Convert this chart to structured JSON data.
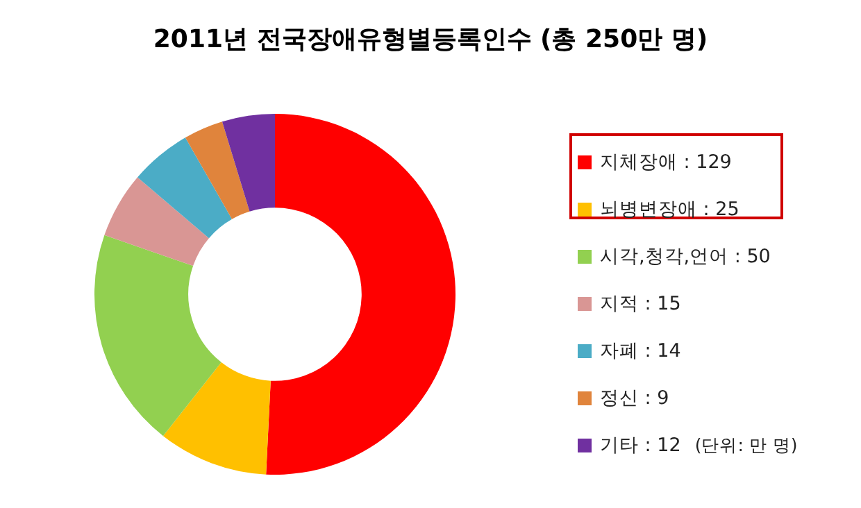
{
  "chart_data": {
    "type": "donut",
    "title": "2011년 전국장애유형별등록인수 (총 250만 명)",
    "categories": [
      "지체장애 : 129",
      "뇌병변장애 : 25",
      "시각,청각,언어 : 50",
      "지적 : 15",
      "자폐 : 14",
      "정신 : 9",
      "기타 : 12"
    ],
    "values": [
      129,
      25,
      50,
      15,
      14,
      9,
      12
    ],
    "colors": [
      "#ff0000",
      "#ffc000",
      "#92d050",
      "#d99694",
      "#4bacc6",
      "#e0843c",
      "#7030a0"
    ],
    "legend": "right",
    "annotations": [
      "(단위:  만 명)"
    ]
  }
}
